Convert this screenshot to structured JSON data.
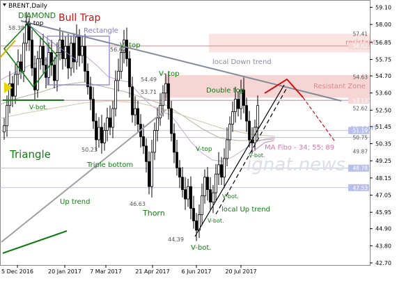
{
  "instrument": {
    "title": "BRENT,Daily"
  },
  "colors": {
    "up_candle": "#000000",
    "down_candle": "#000000",
    "trendline_down": "#7f8a99",
    "up_trend_line": "#a0a0a0",
    "resistance_zone": "#f6d6d4",
    "resistance_label": "#d9898c",
    "support_label": "#8f9cd6",
    "price_box": "#b7bfea",
    "annotation_green": "#117a11",
    "bull_trap_red": "#cc1111",
    "forecast_red": "#cc1111",
    "ma_fibo_label": "#d47bb0",
    "watermark": "#dcdfea"
  },
  "annotations": {
    "diamond": "DIAMOND",
    "bull_trap": "Bull Trap",
    "v_top_1": "V- top",
    "rectangle": "Rectangle",
    "v_top_2": "V- top",
    "v_top_3": "V- top",
    "local_down_trend": "local Down trend",
    "double_top": "Double top",
    "resistance_zone": "Resistant Zone",
    "resistant": "resistant",
    "support": "support",
    "ma_fibo": "MA Fibo - 34; 55; 89",
    "triangle": "Triangle",
    "triple_bottom": "Triple bottom",
    "up_trend": "Up trend",
    "thorn": "Thorn",
    "local_up_trend": "local Up trend",
    "v_bot_1": "V-bot.",
    "v_bot_2": "V-bot.",
    "v_bot_3": "V-bot.",
    "v_bot_4": "V-bot.",
    "v_bot_5": "V-bot.",
    "v_top_small": "V-top",
    "watermark": "ignat.news"
  },
  "price_labels": [
    {
      "text": "58.38",
      "value": 58.38
    },
    {
      "text": "56.62",
      "value": 56.62
    },
    {
      "text": "54.49",
      "value": 54.49
    },
    {
      "text": "53.71",
      "value": 53.71
    },
    {
      "text": "50.23",
      "value": 50.23
    },
    {
      "text": "46.63",
      "value": 46.63
    },
    {
      "text": "44.39",
      "value": 44.39
    }
  ],
  "chart_data": {
    "type": "candlestick",
    "title": "BRENT,Daily",
    "y_axis": {
      "ticks": [
        59.1,
        58.0,
        56.85,
        55.75,
        54.7,
        53.6,
        52.5,
        51.45,
        50.35,
        49.25,
        48.15,
        47.05,
        45.95,
        44.9,
        43.8,
        42.7
      ],
      "ylim": [
        42.7,
        59.3
      ]
    },
    "x_axis": {
      "ticks": [
        "5 Dec 2016",
        "20 Jan 2017",
        "7 Mar 2017",
        "21 Apr 2017",
        "6 Jun 2017",
        "20 Jul 2017"
      ]
    },
    "right_axis_labels": [
      {
        "text": "57.41",
        "value": 57.41,
        "highlight": false
      },
      {
        "text": "56.62",
        "value": 56.62,
        "highlight": true
      },
      {
        "text": "54.63",
        "value": 54.63,
        "highlight": false
      },
      {
        "text": "53.13",
        "value": 53.13,
        "highlight": true
      },
      {
        "text": "52.62",
        "value": 52.62,
        "highlight": false
      },
      {
        "text": "51.19",
        "value": 51.19,
        "highlight": true
      },
      {
        "text": "50.75",
        "value": 50.75,
        "highlight": false
      },
      {
        "text": "49.87",
        "value": 49.87,
        "highlight": false
      },
      {
        "text": "48.78",
        "value": 48.78,
        "highlight": true
      },
      {
        "text": "47.53",
        "value": 47.53,
        "highlight": true
      }
    ],
    "horizontal_levels": [
      {
        "value": 56.62,
        "kind": "resistant"
      },
      {
        "value": 53.13,
        "kind": "resistance_zone_bottom"
      },
      {
        "value": 51.19,
        "kind": "support"
      },
      {
        "value": 50.75,
        "kind": "support"
      },
      {
        "value": 48.78,
        "kind": "support"
      },
      {
        "value": 47.53,
        "kind": "support"
      }
    ],
    "resistance_zone": [
      53.3,
      54.75
    ]
  }
}
